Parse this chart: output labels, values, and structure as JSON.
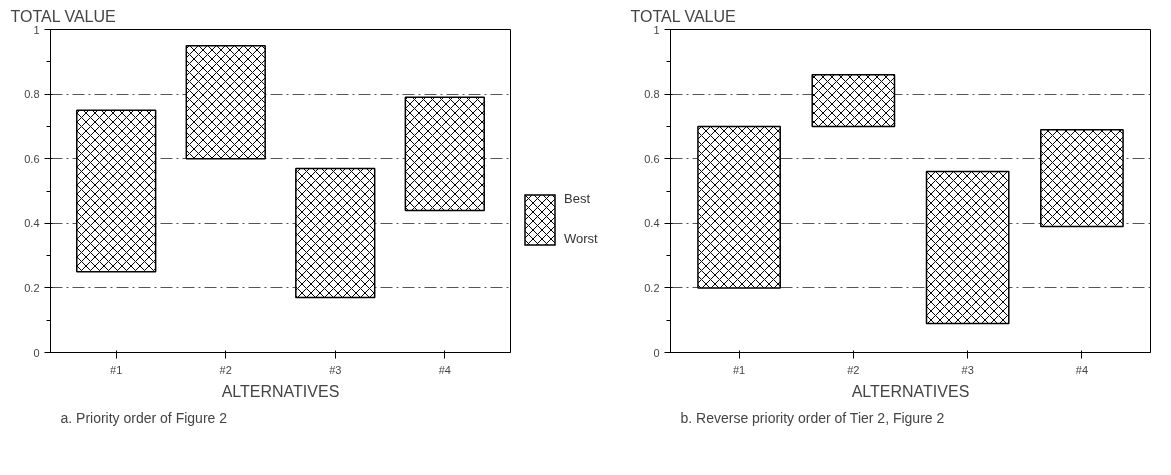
{
  "chart_data": [
    {
      "type": "bar",
      "ylabel": "TOTAL VALUE",
      "xlabel": "ALTERNATIVES",
      "categories": [
        "#1",
        "#2",
        "#3",
        "#4"
      ],
      "base": [
        0.25,
        0.6,
        0.17,
        0.44
      ],
      "values": [
        0.5,
        0.35,
        0.4,
        0.35
      ],
      "color": "#000000",
      "ylim": [
        0,
        1
      ],
      "yticks": [
        0,
        0.2,
        0.4,
        0.6,
        0.8,
        1
      ],
      "grid": "y",
      "annotations": [
        "Best",
        "Worst",
        "a. Priority order of Figure 2"
      ]
    },
    {
      "type": "bar",
      "ylabel": "TOTAL VALUE",
      "xlabel": "ALTERNATIVES",
      "categories": [
        "#1",
        "#2",
        "#3",
        "#4"
      ],
      "base": [
        0.2,
        0.7,
        0.09,
        0.39
      ],
      "values": [
        0.5,
        0.16,
        0.47,
        0.3
      ],
      "color": "#000000",
      "ylim": [
        0,
        1
      ],
      "yticks": [
        0,
        0.2,
        0.4,
        0.6,
        0.8,
        1
      ],
      "grid": "y",
      "annotations": [
        "b. Reverse priority order of Tier 2, Figure 2"
      ]
    }
  ]
}
